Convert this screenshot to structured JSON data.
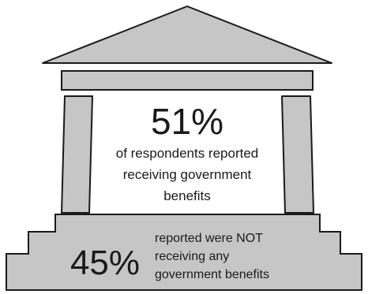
{
  "top_stat": {
    "value": "51%",
    "line1": "of respondents reported",
    "line2": "receiving government",
    "line3": "benefits"
  },
  "bottom_stat": {
    "value": "45%",
    "line1": "reported were NOT",
    "line2": "receiving any",
    "line3": "government benefits"
  },
  "colors": {
    "fill": "#c6c6c6",
    "stroke": "#1a1a1a",
    "text": "#1a1a1a"
  }
}
